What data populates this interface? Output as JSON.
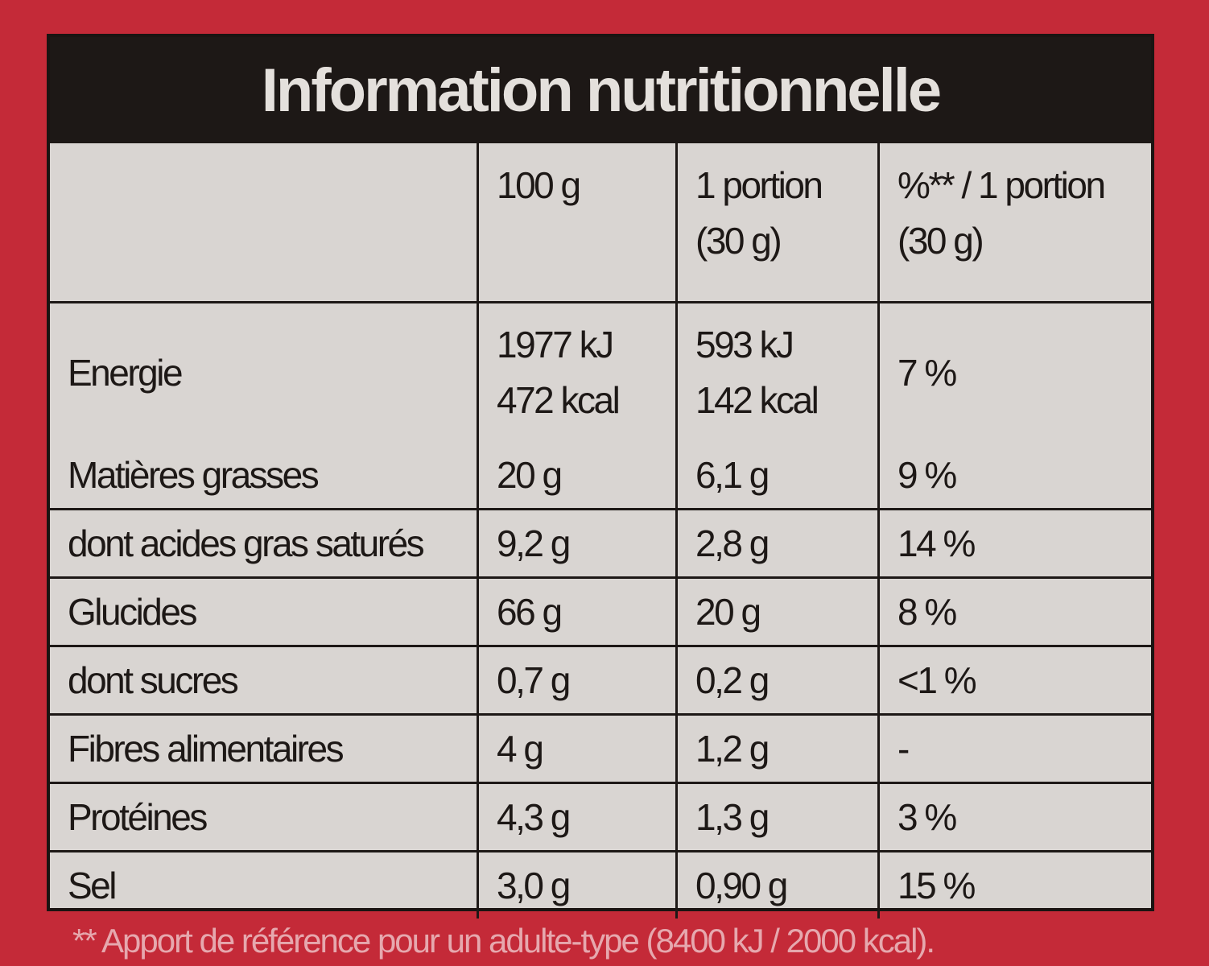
{
  "title": "Information nutritionnelle",
  "columns": [
    "",
    "100 g",
    "1 portion",
    "(30 g)",
    "%** / 1 portion",
    "(30 g)"
  ],
  "energy": {
    "label": "Energie",
    "per100_kj": "1977 kJ",
    "per100_kcal": "472 kcal",
    "portion_kj": "593 kJ",
    "portion_kcal": "142 kcal",
    "pct": "7 %"
  },
  "rows": [
    {
      "label": "Matières grasses",
      "per100": "20 g",
      "portion": "6,1 g",
      "pct": "9 %"
    },
    {
      "label": "dont acides gras saturés",
      "per100": "9,2 g",
      "portion": "2,8 g",
      "pct": "14 %"
    },
    {
      "label": "Glucides",
      "per100": "66 g",
      "portion": "20 g",
      "pct": "8 %"
    },
    {
      "label": "dont sucres",
      "per100": "0,7 g",
      "portion": "0,2 g",
      "pct": "<1 %"
    },
    {
      "label": "Fibres alimentaires",
      "per100": "4 g",
      "portion": "1,2 g",
      "pct": "-"
    },
    {
      "label": "Protéines",
      "per100": "4,3 g",
      "portion": "1,3 g",
      "pct": "3 %"
    },
    {
      "label": "Sel",
      "per100": "3,0 g",
      "portion": "0,90 g",
      "pct": "15 %"
    }
  ],
  "footnote": "** Apport de référence pour un adulte-type (8400 kJ / 2000 kcal)."
}
